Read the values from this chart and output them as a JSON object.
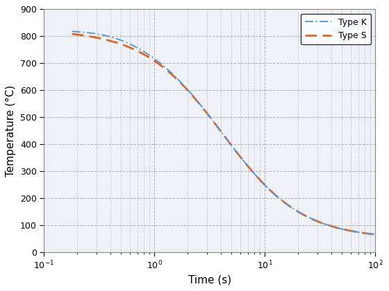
{
  "title": "",
  "xlabel": "Time (s)",
  "ylabel": "Temperature (°C)",
  "xlim": [
    0.1,
    100
  ],
  "ylim": [
    0,
    900
  ],
  "yticks": [
    0,
    100,
    200,
    300,
    400,
    500,
    600,
    700,
    800,
    900
  ],
  "bg_color": "#EEF2F7",
  "grid_color": "#aaaaaa",
  "type_k_color": "#5599dd",
  "type_s_color": "#dd6622",
  "type_k_linewidth": 1.4,
  "type_s_linewidth": 2.0,
  "legend_labels": [
    "Type K",
    "Type S"
  ],
  "t_start": 0.18,
  "t_end": 100,
  "T_high": 825,
  "T_low": 50,
  "log_t_mid": 0.62,
  "steepness": 2.8
}
